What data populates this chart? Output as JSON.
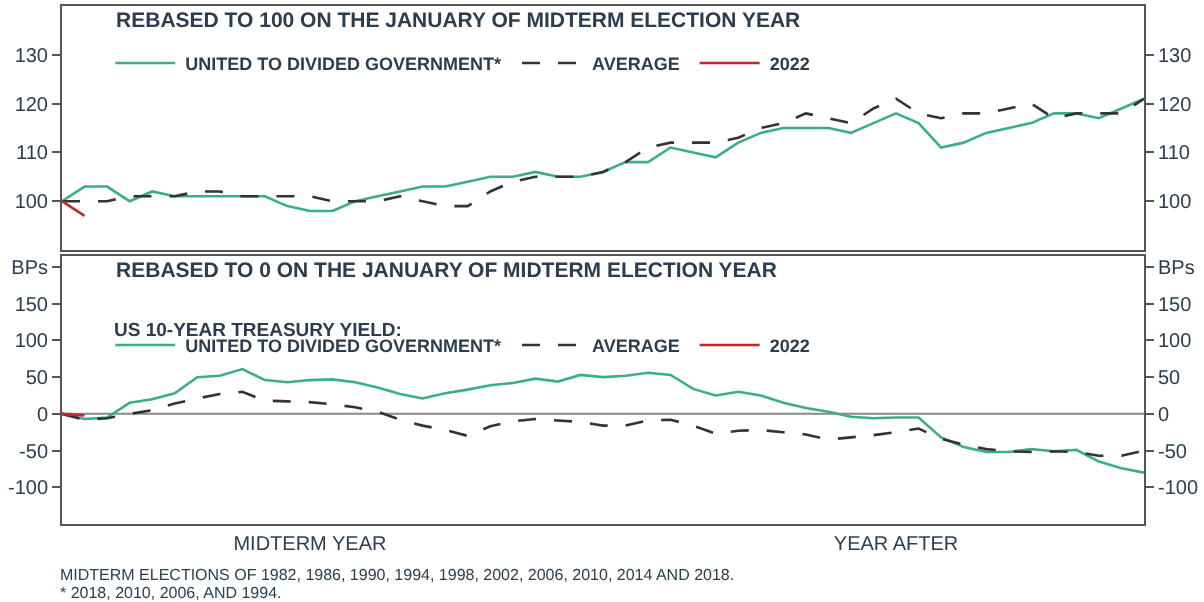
{
  "chart_data": [
    {
      "type": "line",
      "title": "REBASED TO 100 ON THE JANUARY OF MIDTERM ELECTION YEAR",
      "categories": [
        null,
        null,
        null,
        null,
        null,
        null,
        null,
        null,
        null,
        null,
        null,
        null,
        null,
        null,
        null,
        null,
        null,
        null,
        null,
        null,
        null,
        null,
        null,
        null,
        null,
        null,
        null,
        null,
        null,
        null,
        null,
        null,
        null,
        null,
        null,
        null,
        null,
        null,
        null,
        null,
        null,
        null,
        null,
        null,
        null,
        null,
        null,
        null,
        null
      ],
      "ylim": [
        90,
        140
      ],
      "yticks": [
        100,
        110,
        120,
        130
      ],
      "y2lim": [
        90,
        140
      ],
      "y2ticks": [
        100,
        110,
        120,
        130
      ],
      "tick_labels": "y",
      "grid": false,
      "legend": "top left",
      "series": [
        {
          "name": "UNITED TO DIVIDED GOVERNMENT*",
          "color": "#3aae86",
          "line_style": "solid",
          "values": [
            100,
            103,
            103,
            100,
            102,
            101,
            101,
            101,
            101,
            101,
            99,
            98,
            98,
            100,
            101,
            102,
            103,
            103,
            104,
            105,
            105,
            106,
            105,
            105,
            106,
            108,
            108,
            111,
            110,
            109,
            112,
            114,
            115,
            115,
            115,
            114,
            116,
            118,
            116,
            111,
            112,
            114,
            115,
            116,
            118,
            118,
            117,
            119,
            121
          ]
        },
        {
          "name": "AVERAGE",
          "color": "#333333",
          "line_style": "dashed",
          "values": [
            100,
            100,
            100,
            101,
            101,
            101,
            102,
            102,
            101,
            101,
            101,
            101,
            100,
            100,
            100,
            101,
            100,
            99,
            99,
            102,
            104,
            105,
            105,
            105,
            106,
            108,
            111,
            112,
            112,
            112,
            113,
            115,
            116,
            118,
            117,
            116,
            119,
            121,
            118,
            117,
            118,
            118,
            119,
            120,
            117,
            118,
            118,
            118,
            121
          ]
        },
        {
          "name": "2022",
          "color": "#c0282d",
          "line_style": "solid",
          "values": [
            100,
            97,
            null,
            null,
            null,
            null,
            null,
            null,
            null,
            null,
            null,
            null,
            null,
            null,
            null,
            null,
            null,
            null,
            null,
            null,
            null,
            null,
            null,
            null,
            null,
            null,
            null,
            null,
            null,
            null,
            null,
            null,
            null,
            null,
            null,
            null,
            null,
            null,
            null,
            null,
            null,
            null,
            null,
            null,
            null,
            null,
            null,
            null,
            null
          ]
        }
      ]
    },
    {
      "type": "line",
      "title": "REBASED TO 0 ON THE JANUARY OF MIDTERM ELECTION YEAR",
      "legend_title": "US 10-YEAR TREASURY YIELD:",
      "categories": [
        null,
        null,
        null,
        null,
        null,
        null,
        null,
        null,
        null,
        null,
        null,
        "MIDTERM YEAR",
        null,
        null,
        null,
        null,
        null,
        null,
        null,
        null,
        null,
        null,
        null,
        null,
        null,
        null,
        null,
        null,
        null,
        null,
        null,
        null,
        null,
        null,
        null,
        null,
        null,
        "YEAR AFTER",
        null,
        null,
        null,
        null,
        null,
        null,
        null,
        null,
        null,
        null,
        null
      ],
      "ylim": [
        -150,
        215
      ],
      "yticks": [
        -100,
        -50,
        0,
        50,
        100,
        150,
        {
          "value": 200,
          "label": "BPs"
        }
      ],
      "y2lim": [
        -150,
        215
      ],
      "y2ticks": [
        -100,
        -50,
        0,
        50,
        100,
        150,
        {
          "value": 200,
          "label": "BPs"
        }
      ],
      "grid": false,
      "legend": "top left",
      "ref_lines": [
        {
          "axis": "y",
          "value": 0,
          "color": "#888888"
        }
      ],
      "annotations": [
        "MIDTERM ELECTIONS OF 1982, 1986, 1990, 1994, 1998, 2002, 2006, 2010, 2014 AND 2018.",
        "* 2018, 2010, 2006, AND 1994."
      ],
      "series": [
        {
          "name": "UNITED TO DIVIDED GOVERNMENT*",
          "color": "#3aae86",
          "line_style": "solid",
          "values": [
            0,
            -7,
            -5,
            15,
            20,
            28,
            50,
            52,
            61,
            46,
            43,
            46,
            47,
            43,
            36,
            27,
            21,
            28,
            33,
            39,
            42,
            48,
            44,
            53,
            50,
            52,
            56,
            53,
            34,
            25,
            30,
            25,
            15,
            8,
            3,
            -4,
            -6,
            -5,
            -5,
            -32,
            -45,
            -52,
            -52,
            -48,
            -51,
            -49,
            -65,
            -74,
            -80
          ]
        },
        {
          "name": "AVERAGE",
          "color": "#333333",
          "line_style": "dashed",
          "values": [
            0,
            -8,
            -6,
            0,
            5,
            14,
            21,
            27,
            30,
            18,
            17,
            16,
            13,
            9,
            3,
            -8,
            -16,
            -22,
            -30,
            -17,
            -10,
            -7,
            -9,
            -11,
            -16,
            -16,
            -9,
            -8,
            -16,
            -27,
            -23,
            -22,
            -25,
            -28,
            -35,
            -32,
            -29,
            -25,
            -20,
            -34,
            -42,
            -48,
            -51,
            -52,
            -51,
            -52,
            -57,
            -57,
            -50
          ]
        },
        {
          "name": "2022",
          "color": "#c0282d",
          "line_style": "solid",
          "values": [
            0,
            -2,
            null,
            null,
            null,
            null,
            null,
            null,
            null,
            null,
            null,
            null,
            null,
            null,
            null,
            null,
            null,
            null,
            null,
            null,
            null,
            null,
            null,
            null,
            null,
            null,
            null,
            null,
            null,
            null,
            null,
            null,
            null,
            null,
            null,
            null,
            null,
            null,
            null,
            null,
            null,
            null,
            null,
            null,
            null,
            null,
            null,
            null,
            null
          ]
        }
      ]
    }
  ]
}
